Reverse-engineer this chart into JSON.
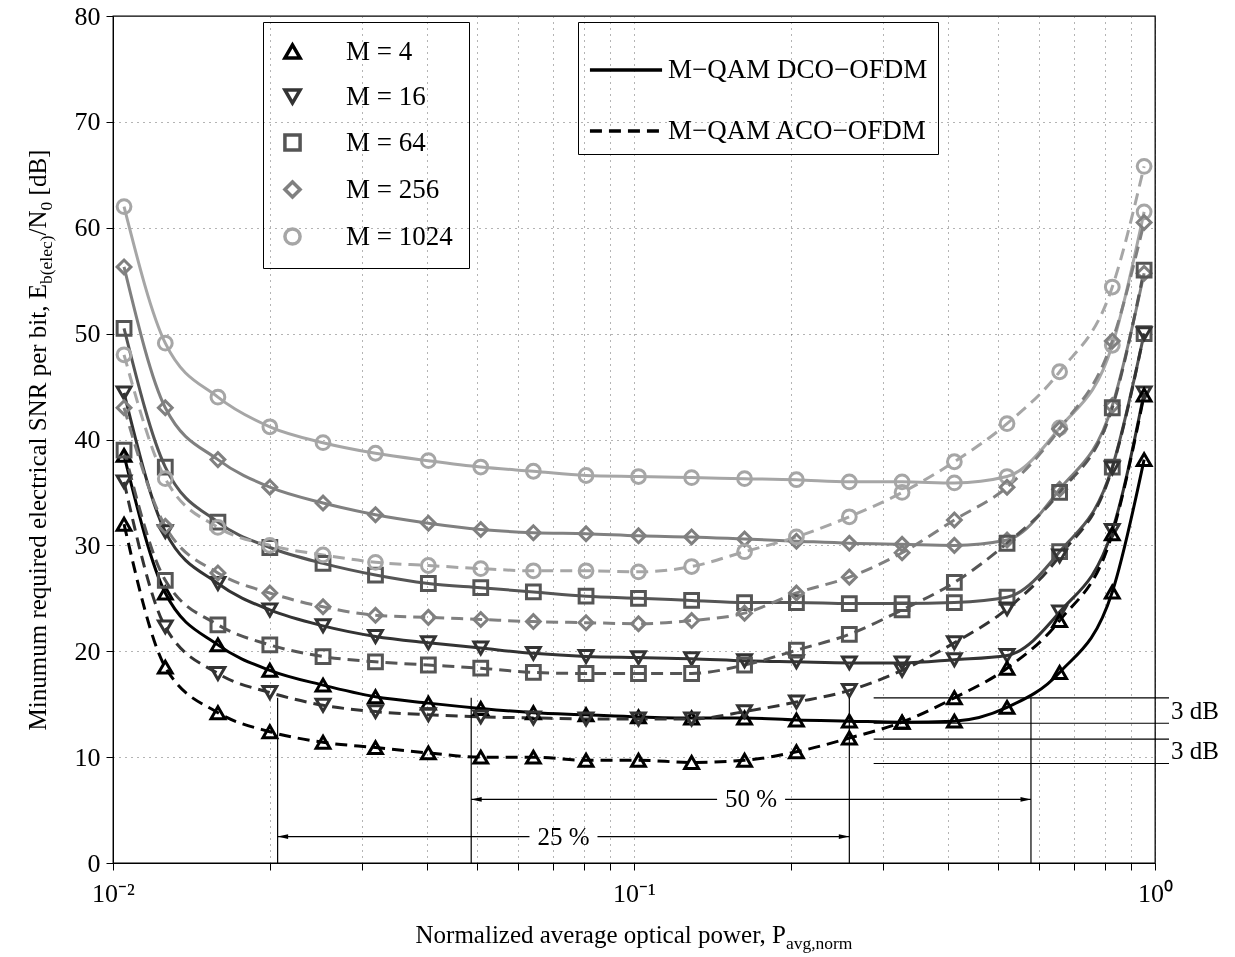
{
  "chart_data": {
    "type": "line",
    "xlabel": "Normalized average optical power, P$_{avg,norm}$",
    "ylabel": "Minumum required electrical SNR per bit, E$_{b(elec)}$/N$_{0}$ [dB]",
    "log": "x",
    "grid": true,
    "legend": "top",
    "xlim": [
      0.01,
      1
    ],
    "xticks": [
      {
        "value": 0.01,
        "label": "10⁻²"
      },
      {
        "value": 0.02,
        "label": null
      },
      {
        "value": 0.03,
        "label": null
      },
      {
        "value": 0.04,
        "label": null
      },
      {
        "value": 0.05,
        "label": null
      },
      {
        "value": 0.06,
        "label": null
      },
      {
        "value": 0.07,
        "label": null
      },
      {
        "value": 0.08,
        "label": null
      },
      {
        "value": 0.09,
        "label": null
      },
      {
        "value": 0.1,
        "label": "10⁻¹"
      },
      {
        "value": 0.2,
        "label": null
      },
      {
        "value": 0.3,
        "label": null
      },
      {
        "value": 0.4,
        "label": null
      },
      {
        "value": 0.5,
        "label": null
      },
      {
        "value": 0.6,
        "label": null
      },
      {
        "value": 0.7,
        "label": null
      },
      {
        "value": 0.8,
        "label": null
      },
      {
        "value": 0.9,
        "label": null
      },
      {
        "value": 1,
        "label": "10⁰"
      }
    ],
    "ylim": [
      0,
      80
    ],
    "yticks": [
      0,
      10,
      20,
      30,
      40,
      50,
      60,
      70,
      80
    ],
    "x": [
      0.0105,
      0.0126,
      0.0159,
      0.02,
      0.0253,
      0.0319,
      0.0403,
      0.0508,
      0.0641,
      0.0809,
      0.102,
      0.129,
      0.163,
      0.205,
      0.259,
      0.327,
      0.412,
      0.52,
      0.656,
      0.828,
      0.953
    ],
    "series": [
      {
        "name": "M = 4",
        "color": "#000000",
        "marker": "triangle",
        "line_style": "solid",
        "values": [
          38.5,
          25.5,
          20.6,
          18.2,
          16.8,
          15.7,
          15.1,
          14.6,
          14.2,
          14.0,
          13.8,
          13.7,
          13.7,
          13.5,
          13.4,
          13.3,
          13.4,
          14.7,
          18.0,
          25.6,
          38.1
        ]
      },
      {
        "name": "M = 16",
        "color": "#333333",
        "marker": "triangle-down",
        "line_style": "solid",
        "values": [
          44.4,
          31.3,
          26.4,
          23.9,
          22.4,
          21.4,
          20.8,
          20.3,
          19.8,
          19.5,
          19.4,
          19.3,
          19.1,
          19.0,
          18.9,
          18.9,
          19.2,
          19.6,
          23.7,
          31.4,
          44.4
        ]
      },
      {
        "name": "M = 64",
        "color": "#555555",
        "marker": "square",
        "line_style": "solid",
        "values": [
          50.5,
          37.4,
          32.2,
          29.8,
          28.3,
          27.2,
          26.4,
          26.0,
          25.6,
          25.2,
          25.0,
          24.8,
          24.6,
          24.6,
          24.5,
          24.5,
          24.6,
          25.1,
          29.4,
          37.4,
          50.0
        ]
      },
      {
        "name": "M = 256",
        "color": "#808080",
        "marker": "diamond",
        "line_style": "solid",
        "values": [
          56.3,
          43.0,
          38.1,
          35.5,
          34.0,
          32.9,
          32.1,
          31.5,
          31.2,
          31.1,
          30.9,
          30.8,
          30.6,
          30.4,
          30.2,
          30.1,
          30.0,
          30.5,
          35.3,
          43.2,
          55.7
        ]
      },
      {
        "name": "M = 1024",
        "color": "#a6a6a6",
        "marker": "circle",
        "line_style": "solid",
        "values": [
          62.0,
          49.1,
          44.0,
          41.2,
          39.7,
          38.7,
          38.0,
          37.4,
          37.0,
          36.6,
          36.5,
          36.4,
          36.3,
          36.2,
          36.0,
          36.0,
          35.9,
          36.5,
          41.1,
          48.9,
          61.5
        ]
      },
      {
        "color": "#000000",
        "marker": "triangle",
        "line_style": "dashed",
        "values": [
          32.0,
          18.5,
          14.2,
          12.4,
          11.4,
          10.9,
          10.4,
          10.0,
          10.0,
          9.7,
          9.7,
          9.5,
          9.7,
          10.5,
          11.8,
          13.3,
          15.6,
          18.4,
          22.9,
          31.1,
          44.2
        ]
      },
      {
        "color": "#333333",
        "marker": "triangle-down",
        "line_style": "dashed",
        "values": [
          36.0,
          22.3,
          17.9,
          16.1,
          14.9,
          14.3,
          14.0,
          13.8,
          13.7,
          13.6,
          13.6,
          13.6,
          14.3,
          15.2,
          16.3,
          18.2,
          20.8,
          24.0,
          29.0,
          37.3,
          50.0
        ]
      },
      {
        "color": "#555555",
        "marker": "square",
        "line_style": "dashed",
        "values": [
          39.0,
          26.7,
          22.5,
          20.6,
          19.5,
          19.0,
          18.7,
          18.4,
          18.0,
          17.9,
          17.9,
          17.9,
          18.7,
          20.1,
          21.6,
          23.9,
          26.5,
          30.2,
          35.0,
          43.0,
          56.0
        ]
      },
      {
        "color": "#808080",
        "marker": "diamond",
        "line_style": "dashed",
        "values": [
          43.0,
          31.8,
          27.4,
          25.5,
          24.2,
          23.4,
          23.2,
          23.0,
          22.8,
          22.7,
          22.6,
          22.9,
          23.6,
          25.5,
          27.0,
          29.3,
          32.4,
          35.5,
          41.0,
          49.3,
          60.5
        ]
      },
      {
        "color": "#a6a6a6",
        "marker": "circle",
        "line_style": "dashed",
        "values": [
          48.0,
          36.3,
          31.7,
          30.0,
          29.1,
          28.4,
          28.1,
          27.8,
          27.6,
          27.6,
          27.5,
          28.0,
          29.4,
          30.8,
          32.7,
          35.0,
          37.9,
          41.5,
          46.4,
          54.4,
          65.8
        ]
      }
    ],
    "ref_lines": [
      {
        "axis": "y",
        "value": 15.6
      },
      {
        "axis": "y",
        "value": 13.2
      },
      {
        "axis": "y",
        "value": 11.7
      },
      {
        "axis": "y",
        "value": 9.4
      },
      {
        "axis": "x",
        "value": 0.0487
      },
      {
        "axis": "x",
        "value": 0.578
      },
      {
        "axis": "x",
        "value": 0.0207
      },
      {
        "axis": "x",
        "value": 0.259
      }
    ],
    "annotations": [
      "M−QAM DCO−OFDM",
      "M−QAM ACO−OFDM",
      {
        "text": "50 %",
        "x": 0.578,
        "y": 6.0
      },
      {
        "text": "25 %",
        "x": 0.259,
        "y": 2.5
      },
      "3 dB",
      "3 dB"
    ]
  }
}
